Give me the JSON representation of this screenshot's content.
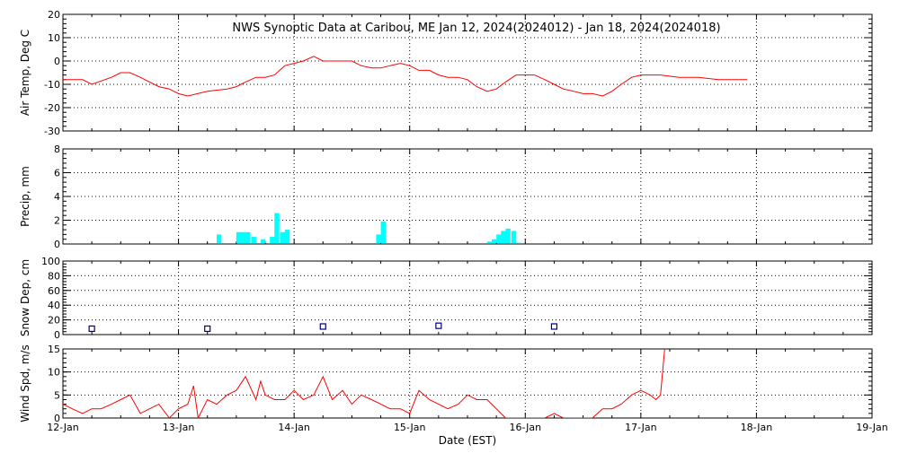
{
  "colors": {
    "background": "#ffffff",
    "axis": "#000000",
    "grid": "#000000",
    "temp_line": "#ff0000",
    "precip_bar": "#00ffff",
    "snow_marker": "#000080",
    "wind_line": "#ff0000"
  },
  "chart_data": {
    "title": "NWS Synoptic Data at Caribou, ME   Jan 12, 2024(2024012) - Jan 18, 2024(2024018)",
    "xlabel": "Date (EST)",
    "x_unit": "days since 12-Jan 00:00",
    "x_range": [
      0,
      7
    ],
    "x_tick_labels": [
      "12-Jan",
      "13-Jan",
      "14-Jan",
      "15-Jan",
      "16-Jan",
      "17-Jan",
      "18-Jan",
      "19-Jan"
    ],
    "grid": true,
    "panels": [
      {
        "id": "temp",
        "type": "line",
        "ylabel": "Air Temp, Deg C",
        "ylim": [
          -30,
          20
        ],
        "yticks": [
          20,
          10,
          0,
          -10,
          -20,
          -30
        ],
        "x": [
          0,
          0.17,
          0.25,
          0.42,
          0.5,
          0.58,
          0.67,
          0.83,
          0.92,
          1.0,
          1.08,
          1.25,
          1.42,
          1.5,
          1.58,
          1.67,
          1.75,
          1.83,
          1.92,
          2.0,
          2.08,
          2.17,
          2.25,
          2.33,
          2.42,
          2.5,
          2.58,
          2.67,
          2.75,
          2.83,
          2.92,
          3.0,
          3.08,
          3.17,
          3.25,
          3.33,
          3.42,
          3.5,
          3.58,
          3.67,
          3.75,
          3.83,
          3.92,
          4.0,
          4.08,
          4.17,
          4.25,
          4.33,
          4.42,
          4.5,
          4.58,
          4.67,
          4.75,
          4.83,
          4.92,
          5.0,
          5.08,
          5.17,
          5.33,
          5.5,
          5.67,
          5.83,
          5.92
        ],
        "values": [
          -8,
          -8,
          -10,
          -7,
          -5,
          -5,
          -7,
          -11,
          -12,
          -14,
          -15,
          -13,
          -12,
          -11,
          -9,
          -7,
          -7,
          -6,
          -2,
          -1,
          0,
          2,
          0,
          0,
          0,
          0,
          -2,
          -3,
          -3,
          -2,
          -1,
          -2,
          -4,
          -4,
          -6,
          -7,
          -7,
          -8,
          -11,
          -13,
          -12,
          -9,
          -6,
          -6,
          -6,
          -8,
          -10,
          -12,
          -13,
          -14,
          -14,
          -15,
          -13,
          -10,
          -7,
          -6,
          -6,
          -6,
          -7,
          -7,
          -8,
          -8,
          -8
        ]
      },
      {
        "id": "precip",
        "type": "bar",
        "ylabel": "Precip, mm",
        "ylim": [
          0,
          8
        ],
        "yticks": [
          8,
          6,
          4,
          2,
          0
        ],
        "bar_width": 0.042,
        "x": [
          1.33,
          1.5,
          1.54,
          1.58,
          1.63,
          1.71,
          1.79,
          1.83,
          1.88,
          1.92,
          2.71,
          2.75,
          3.67,
          3.71,
          3.75,
          3.79,
          3.83,
          3.88,
          3.92
        ],
        "values": [
          0.8,
          1.0,
          1.0,
          1.0,
          0.6,
          0.4,
          0.6,
          2.6,
          1.0,
          1.2,
          0.8,
          1.9,
          0.2,
          0.4,
          0.8,
          1.1,
          1.3,
          1.1,
          0.1
        ]
      },
      {
        "id": "snow",
        "type": "scatter",
        "ylabel": "Snow Dep, cm",
        "ylim": [
          0,
          100
        ],
        "yticks": [
          100,
          80,
          60,
          40,
          20,
          0
        ],
        "x": [
          0.25,
          1.25,
          2.25,
          3.25,
          4.25
        ],
        "values": [
          8,
          8,
          11,
          12,
          11
        ]
      },
      {
        "id": "wind",
        "type": "line",
        "ylabel": "Wind Spd, m/s",
        "ylim": [
          0,
          15
        ],
        "yticks": [
          15,
          10,
          5,
          0
        ],
        "x": [
          0,
          0.08,
          0.17,
          0.25,
          0.33,
          0.42,
          0.5,
          0.58,
          0.67,
          0.75,
          0.83,
          0.92,
          1.0,
          1.08,
          1.13,
          1.17,
          1.21,
          1.25,
          1.33,
          1.42,
          1.5,
          1.58,
          1.67,
          1.71,
          1.75,
          1.83,
          1.92,
          2.0,
          2.08,
          2.17,
          2.25,
          2.33,
          2.42,
          2.5,
          2.58,
          2.67,
          2.75,
          2.83,
          2.92,
          3.0,
          3.08,
          3.17,
          3.25,
          3.33,
          3.42,
          3.5,
          3.58,
          3.67,
          3.75,
          3.83,
          3.92,
          4.0,
          4.08,
          4.17,
          4.25,
          4.33,
          4.42,
          4.5,
          4.58,
          4.67,
          4.75,
          4.83,
          4.92,
          5.0,
          5.08,
          5.13,
          5.17
        ],
        "values": [
          3,
          2,
          1,
          2,
          2,
          3,
          4,
          5,
          1,
          2,
          3,
          0,
          2,
          3,
          7,
          0,
          2,
          4,
          3,
          5,
          6,
          9,
          4,
          8,
          5,
          4,
          4,
          6,
          4,
          5,
          9,
          4,
          6,
          3,
          5,
          4,
          3,
          2,
          2,
          1,
          6,
          4,
          3,
          2,
          3,
          5,
          4,
          4,
          2,
          0,
          0,
          0,
          0,
          0,
          1,
          0,
          0,
          0,
          0,
          2,
          2,
          3,
          5,
          6,
          5,
          4,
          5
        ]
      }
    ]
  }
}
